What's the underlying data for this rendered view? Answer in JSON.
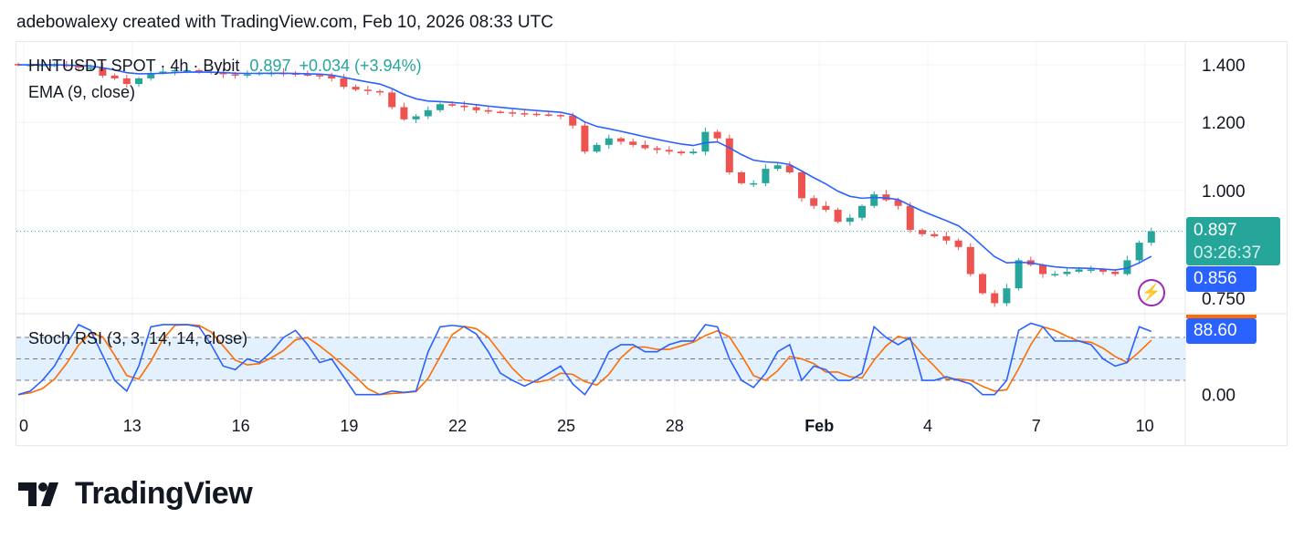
{
  "header": "adebowalexy created with TradingView.com, Feb 10, 2026 08:33 UTC",
  "legend": {
    "symbol": "HNTUSDT SPOT · 4h · Bybit",
    "price": "0.897",
    "change": "+0.034 (+3.94%)",
    "ema": "EMA (9, close)",
    "stoch": "Stoch RSI (3, 3, 14, 14, close)"
  },
  "labels": {
    "last_price": "0.897",
    "countdown": "03:26:37",
    "ema_value": "0.856",
    "stoch_value": "88.60"
  },
  "brand": "TradingView",
  "colors": {
    "up": "#26a69a",
    "down": "#ef5350",
    "ema": "#2962ff",
    "k": "#2962ff",
    "d": "#ff6d00",
    "band": "#e3f0fd"
  },
  "chart_data": {
    "type": "candlestick",
    "interval": "8h bars (approx.)",
    "price_ticks": [
      1.4,
      1.2,
      1.0,
      0.75
    ],
    "price_tick_labels": [
      "1.400",
      "1.200",
      "1.000",
      "0.750"
    ],
    "price_scale": "log",
    "x_ticks": [
      {
        "label": "0",
        "i": 0
      },
      {
        "label": "13",
        "i": 9
      },
      {
        "label": "16",
        "i": 18
      },
      {
        "label": "19",
        "i": 27
      },
      {
        "label": "22",
        "i": 36
      },
      {
        "label": "25",
        "i": 45
      },
      {
        "label": "28",
        "i": 54
      },
      {
        "label": "Feb",
        "i": 66
      },
      {
        "label": "4",
        "i": 75
      },
      {
        "label": "7",
        "i": 84
      },
      {
        "label": "10",
        "i": 93
      }
    ],
    "closes": [
      1.4,
      1.4,
      1.4,
      1.4,
      1.395,
      1.39,
      1.39,
      1.36,
      1.35,
      1.33,
      1.35,
      1.37,
      1.375,
      1.38,
      1.38,
      1.375,
      1.37,
      1.365,
      1.36,
      1.365,
      1.37,
      1.37,
      1.368,
      1.365,
      1.362,
      1.36,
      1.35,
      1.32,
      1.31,
      1.305,
      1.3,
      1.25,
      1.21,
      1.22,
      1.24,
      1.26,
      1.255,
      1.25,
      1.24,
      1.235,
      1.233,
      1.23,
      1.228,
      1.226,
      1.224,
      1.222,
      1.19,
      1.11,
      1.13,
      1.15,
      1.14,
      1.13,
      1.12,
      1.115,
      1.11,
      1.105,
      1.11,
      1.17,
      1.15,
      1.05,
      1.02,
      1.02,
      1.06,
      1.07,
      1.05,
      0.98,
      0.96,
      0.95,
      0.92,
      0.93,
      0.96,
      0.99,
      0.975,
      0.96,
      0.9,
      0.89,
      0.885,
      0.875,
      0.86,
      0.8,
      0.76,
      0.74,
      0.77,
      0.83,
      0.82,
      0.8,
      0.8,
      0.805,
      0.81,
      0.81,
      0.805,
      0.8,
      0.83,
      0.87,
      0.897
    ],
    "ema_period": 9,
    "stoch": {
      "ticks": [
        "0.00"
      ],
      "bands": [
        80,
        50,
        20
      ],
      "k": [
        0,
        5,
        20,
        40,
        70,
        98,
        90,
        55,
        20,
        5,
        40,
        95,
        98,
        98,
        98,
        95,
        70,
        40,
        35,
        50,
        45,
        60,
        80,
        90,
        70,
        45,
        50,
        25,
        0,
        0,
        0,
        5,
        3,
        5,
        60,
        95,
        97,
        95,
        85,
        60,
        30,
        20,
        12,
        20,
        30,
        40,
        15,
        0,
        25,
        60,
        70,
        70,
        60,
        60,
        70,
        75,
        75,
        98,
        95,
        50,
        20,
        10,
        30,
        60,
        70,
        20,
        40,
        35,
        20,
        20,
        30,
        95,
        80,
        70,
        80,
        20,
        20,
        25,
        20,
        15,
        0,
        0,
        20,
        90,
        100,
        95,
        75,
        75,
        75,
        70,
        50,
        40,
        45,
        95,
        88.6
      ]
    }
  }
}
